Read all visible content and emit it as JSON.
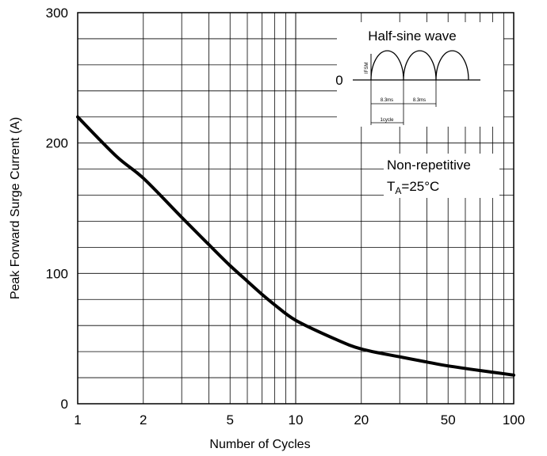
{
  "chart_data": {
    "type": "line",
    "xlabel": "Number of Cycles",
    "ylabel": "Peak Forward Surge Current (A)",
    "x_scale": "log",
    "xlim": [
      1,
      100
    ],
    "ylim": [
      0,
      300
    ],
    "x_ticks": [
      1,
      2,
      5,
      10,
      20,
      50,
      100
    ],
    "x_tick_labels": [
      "1",
      "2",
      "5",
      "10",
      "20",
      "50",
      "100"
    ],
    "y_ticks": [
      0,
      100,
      200,
      300
    ],
    "y_tick_labels": [
      "0",
      "100",
      "200",
      "300"
    ],
    "grid": true,
    "series": [
      {
        "x": [
          1,
          1.5,
          2,
          3,
          4,
          5,
          6,
          7,
          8,
          10,
          15,
          20,
          30,
          40,
          50,
          70,
          100
        ],
        "y": [
          220,
          190,
          173,
          143,
          122,
          106,
          94,
          84,
          76,
          64,
          50,
          42,
          36,
          32,
          29,
          25.5,
          22
        ],
        "color": "#000000"
      }
    ],
    "annotations": {
      "waveform": {
        "title": "Half-sine wave",
        "zero_label": "0",
        "peak_label": "IFSM",
        "half_period_labels": [
          "8.3ms",
          "8.3ms"
        ],
        "cycle_label": "1cycle"
      },
      "condition": {
        "line1": "Non-repetitive",
        "temp_prefix": "T",
        "temp_subscript": "A",
        "temp_value": "=25°C"
      }
    }
  }
}
